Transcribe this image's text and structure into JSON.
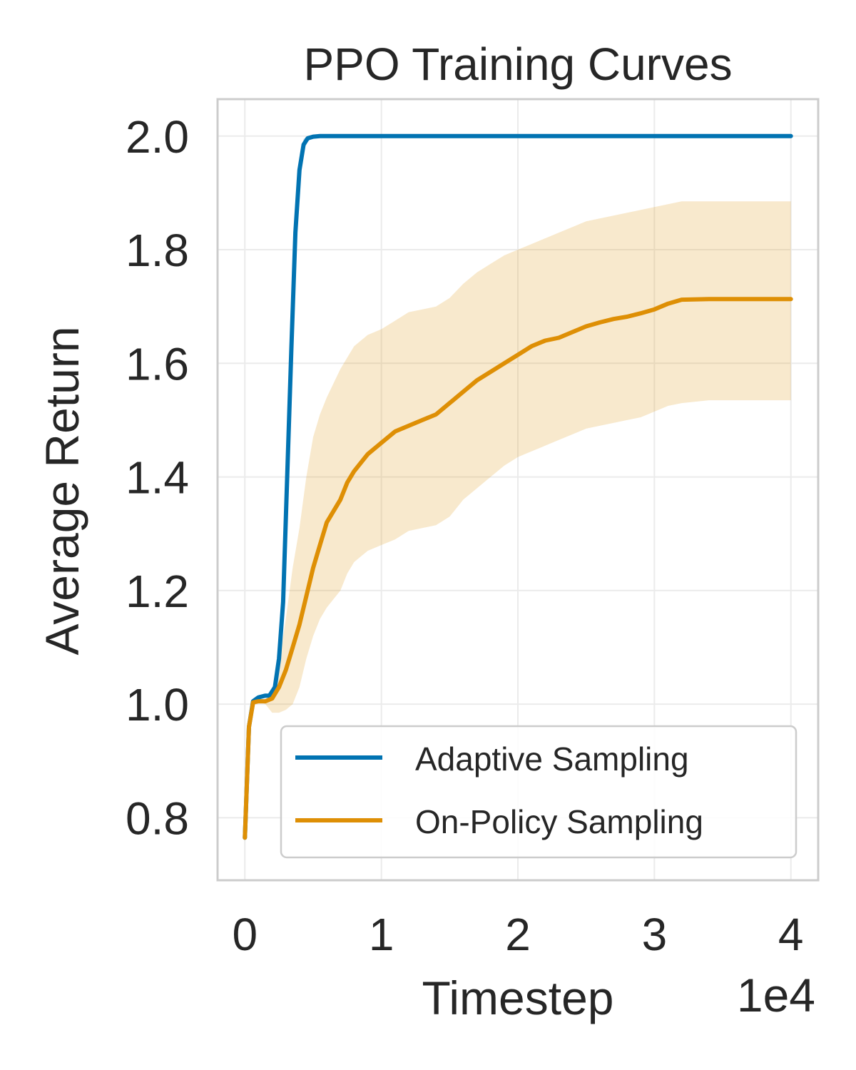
{
  "chart_data": {
    "type": "line",
    "title": "PPO Training Curves",
    "xlabel": "Timestep",
    "ylabel": "Average Return",
    "x_offset_text": "1e4",
    "xlim": [
      -2000,
      42000
    ],
    "ylim": [
      0.69,
      2.065
    ],
    "xticks": [
      0,
      10000,
      20000,
      30000,
      40000
    ],
    "xtick_labels": [
      "0",
      "1",
      "2",
      "3",
      "4"
    ],
    "yticks": [
      0.8,
      1.0,
      1.2,
      1.4,
      1.6,
      1.8,
      2.0
    ],
    "ytick_labels": [
      "0.8",
      "1.0",
      "1.2",
      "1.4",
      "1.6",
      "1.8",
      "2.0"
    ],
    "grid": true,
    "legend": {
      "placement": "lower-right"
    },
    "series": [
      {
        "name": "Adaptive Sampling",
        "color": "#0173b2",
        "x": [
          0,
          300,
          600,
          1000,
          1500,
          1800,
          2200,
          2500,
          2800,
          3100,
          3400,
          3700,
          4000,
          4300,
          4600,
          5000,
          5500,
          6000,
          8000,
          10000,
          20000,
          30000,
          40000
        ],
        "y": [
          0.765,
          0.96,
          1.005,
          1.012,
          1.015,
          1.015,
          1.03,
          1.08,
          1.18,
          1.4,
          1.62,
          1.83,
          1.94,
          1.985,
          1.996,
          1.999,
          2.0,
          2.0,
          2.0,
          2.0,
          2.0,
          2.0,
          2.0
        ],
        "upper": [
          0.765,
          0.96,
          1.005,
          1.012,
          1.015,
          1.015,
          1.03,
          1.08,
          1.18,
          1.4,
          1.62,
          1.83,
          1.95,
          1.995,
          2.0,
          2.0,
          2.0,
          2.0,
          2.0,
          2.0,
          2.0,
          2.0,
          2.0
        ],
        "lower": [
          0.765,
          0.96,
          1.005,
          1.012,
          1.015,
          1.015,
          1.03,
          1.08,
          1.18,
          1.4,
          1.62,
          1.83,
          1.93,
          1.975,
          1.99,
          1.998,
          2.0,
          2.0,
          2.0,
          2.0,
          2.0,
          2.0,
          2.0
        ]
      },
      {
        "name": "On-Policy Sampling",
        "color": "#de8f05",
        "x": [
          0,
          300,
          600,
          1000,
          1500,
          2000,
          2500,
          3000,
          3500,
          4000,
          4500,
          5000,
          5500,
          6000,
          7000,
          7500,
          8000,
          9000,
          10000,
          11000,
          12000,
          13000,
          14000,
          15000,
          16000,
          17000,
          18000,
          19000,
          20000,
          21000,
          22000,
          23000,
          24000,
          25000,
          26000,
          27000,
          28000,
          29000,
          30000,
          31000,
          32000,
          34000,
          36000,
          38000,
          40000
        ],
        "y": [
          0.765,
          0.96,
          1.003,
          1.005,
          1.005,
          1.01,
          1.03,
          1.06,
          1.1,
          1.14,
          1.19,
          1.24,
          1.28,
          1.32,
          1.36,
          1.39,
          1.41,
          1.44,
          1.46,
          1.48,
          1.49,
          1.5,
          1.51,
          1.53,
          1.55,
          1.57,
          1.585,
          1.6,
          1.615,
          1.63,
          1.64,
          1.645,
          1.655,
          1.665,
          1.672,
          1.678,
          1.682,
          1.688,
          1.695,
          1.705,
          1.712,
          1.713,
          1.713,
          1.713,
          1.713
        ],
        "upper": [
          0.765,
          0.96,
          1.003,
          1.005,
          1.005,
          1.02,
          1.07,
          1.15,
          1.24,
          1.31,
          1.4,
          1.47,
          1.51,
          1.54,
          1.59,
          1.61,
          1.63,
          1.65,
          1.66,
          1.675,
          1.69,
          1.695,
          1.7,
          1.715,
          1.74,
          1.76,
          1.775,
          1.79,
          1.8,
          1.81,
          1.82,
          1.83,
          1.84,
          1.85,
          1.855,
          1.86,
          1.865,
          1.87,
          1.875,
          1.88,
          1.885,
          1.885,
          1.885,
          1.885,
          1.885
        ],
        "lower": [
          0.765,
          0.96,
          1.003,
          1.005,
          1.0,
          0.985,
          0.985,
          0.99,
          1.0,
          1.03,
          1.08,
          1.12,
          1.15,
          1.17,
          1.2,
          1.23,
          1.25,
          1.27,
          1.28,
          1.29,
          1.305,
          1.31,
          1.315,
          1.33,
          1.36,
          1.38,
          1.4,
          1.42,
          1.435,
          1.445,
          1.455,
          1.465,
          1.475,
          1.485,
          1.49,
          1.495,
          1.5,
          1.505,
          1.515,
          1.525,
          1.53,
          1.535,
          1.535,
          1.535,
          1.535
        ]
      }
    ]
  }
}
